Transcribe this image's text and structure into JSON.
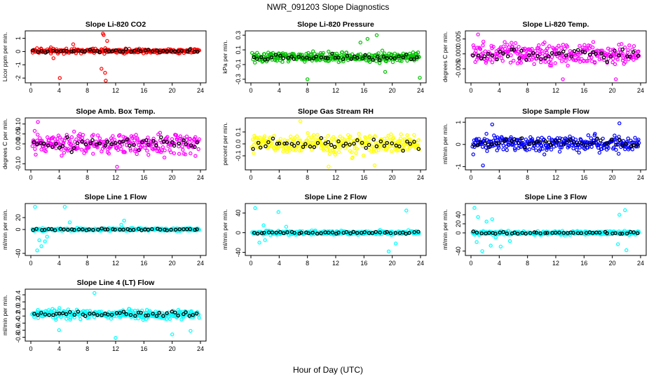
{
  "figure": {
    "title": "NWR_091203  Slope Diagnostics",
    "xlabel": "Hour of Day (UTC)"
  },
  "chart_data": [
    {
      "type": "scatter",
      "title": "Slope Li-820 CO2",
      "ylabel": "Licor ppm per min.",
      "color": "#ff0000",
      "xlim": [
        0,
        24
      ],
      "xticks": [
        0,
        4,
        8,
        12,
        16,
        20,
        24
      ],
      "ylim": [
        -2.2,
        1.4
      ],
      "yticks": [
        -2,
        -1,
        0,
        1
      ],
      "ytick_labels": [
        "-2",
        "-1",
        "0",
        "1"
      ],
      "spread": 0.18,
      "center": 0.05,
      "outliers": [
        [
          4.1,
          -2.0
        ],
        [
          10.3,
          1.25
        ],
        [
          10.5,
          -1.6
        ],
        [
          10.6,
          -2.2
        ],
        [
          10.2,
          1.35
        ],
        [
          6.0,
          0.55
        ],
        [
          3.2,
          -0.5
        ],
        [
          10.8,
          0.8
        ],
        [
          10.0,
          -1.3
        ]
      ]
    },
    {
      "type": "scatter",
      "title": "Slope Li-820 Pressure",
      "ylabel": "kPa per min.",
      "color": "#00c000",
      "xlim": [
        0,
        24
      ],
      "xticks": [
        0,
        4,
        8,
        12,
        16,
        20,
        24
      ],
      "ylim": [
        -0.32,
        0.33
      ],
      "yticks": [
        -0.3,
        -0.1,
        0.1,
        0.3
      ],
      "ytick_labels": [
        "-0.3",
        "-0.1",
        "0.1",
        "0.3"
      ],
      "spread": 0.07,
      "center": 0.0,
      "outliers": [
        [
          8.0,
          -0.3
        ],
        [
          17.8,
          0.3
        ],
        [
          23.9,
          -0.28
        ],
        [
          15.5,
          0.2
        ],
        [
          19.0,
          -0.2
        ],
        [
          16.5,
          0.25
        ]
      ]
    },
    {
      "type": "scatter",
      "title": "Slope Li-820 Temp.",
      "ylabel": "degrees C per min.",
      "color": "#ff00ff",
      "xlim": [
        0,
        24
      ],
      "xticks": [
        0,
        4,
        8,
        12,
        16,
        20,
        24
      ],
      "ylim": [
        -0.009,
        0.007
      ],
      "yticks": [
        -0.005,
        0,
        0.005
      ],
      "ytick_labels": [
        "-0.005",
        "0.000",
        "0.005"
      ],
      "spread": 0.0035,
      "center": 0.0,
      "outliers": [
        [
          20.5,
          -0.0085
        ],
        [
          1.0,
          0.0065
        ],
        [
          13.0,
          -0.0085
        ]
      ]
    },
    {
      "type": "scatter",
      "title": "Slope Amb. Box Temp.",
      "ylabel": "degrees C per min.",
      "color": "#ff00ff",
      "xlim": [
        0,
        24
      ],
      "xticks": [
        0,
        4,
        8,
        12,
        16,
        20,
        24
      ],
      "ylim": [
        -0.12,
        0.12
      ],
      "yticks": [
        -0.1,
        0,
        0.05,
        0.1
      ],
      "ytick_labels": [
        "-0.10",
        "0.00",
        "0.05",
        "0.10"
      ],
      "spread": 0.05,
      "center": 0.0,
      "outliers": [
        [
          12.2,
          -0.115
        ],
        [
          1.0,
          0.11
        ]
      ]
    },
    {
      "type": "scatter",
      "title": "Slope Gas Stream RH",
      "ylabel": "percent per min.",
      "color": "#ffff00",
      "xlim": [
        0,
        24
      ],
      "xticks": [
        0,
        4,
        8,
        12,
        16,
        20,
        24
      ],
      "ylim": [
        -0.2,
        0.2
      ],
      "yticks": [
        -0.1,
        0,
        0.1
      ],
      "ytick_labels": [
        "-0.1",
        "0.0",
        "0.1"
      ],
      "spread": 0.08,
      "center": 0.0,
      "outliers": [
        [
          7.0,
          0.19
        ],
        [
          11.0,
          -0.19
        ],
        [
          17.5,
          -0.18
        ]
      ]
    },
    {
      "type": "scatter",
      "title": "Slope Sample Flow",
      "ylabel": "ml/min per min.",
      "color": "#0000ff",
      "xlim": [
        0,
        24
      ],
      "xticks": [
        0,
        4,
        8,
        12,
        16,
        20,
        24
      ],
      "ylim": [
        -1.05,
        1.1
      ],
      "yticks": [
        -1,
        0,
        1
      ],
      "ytick_labels": [
        "-1",
        "0",
        "1"
      ],
      "spread": 0.35,
      "center": 0.05,
      "outliers": [
        [
          1.7,
          -0.95
        ],
        [
          21.0,
          0.95
        ],
        [
          3.0,
          0.9
        ]
      ]
    },
    {
      "type": "scatter",
      "title": "Slope Line 1 Flow",
      "ylabel": "ml/min per min.",
      "color": "#00ffff",
      "xlim": [
        0,
        24
      ],
      "xticks": [
        0,
        4,
        8,
        12,
        16,
        20,
        24
      ],
      "ylim": [
        -40,
        40
      ],
      "yticks": [
        -40,
        0,
        20
      ],
      "ytick_labels": [
        "-40",
        "0",
        "20"
      ],
      "spread": 2.5,
      "center": 0.0,
      "outliers": [
        [
          0.6,
          38
        ],
        [
          4.8,
          38
        ],
        [
          2.0,
          -20
        ],
        [
          1.5,
          -28
        ],
        [
          0.9,
          -35
        ],
        [
          2.3,
          -12
        ],
        [
          1.2,
          -18
        ],
        [
          5.5,
          12
        ],
        [
          13.2,
          15
        ],
        [
          12.8,
          8
        ]
      ]
    },
    {
      "type": "scatter",
      "title": "Slope Line 2 Flow",
      "ylabel": "ml/min per min.",
      "color": "#00ffff",
      "xlim": [
        0,
        24
      ],
      "xticks": [
        0,
        4,
        8,
        12,
        16,
        20,
        24
      ],
      "ylim": [
        -42,
        55
      ],
      "yticks": [
        -40,
        0,
        40
      ],
      "ytick_labels": [
        "-40",
        "0",
        "40"
      ],
      "spread": 4,
      "center": 0.0,
      "outliers": [
        [
          0.6,
          50
        ],
        [
          3.9,
          42
        ],
        [
          1.2,
          -20
        ],
        [
          2.0,
          -15
        ],
        [
          19.5,
          -38
        ],
        [
          22.0,
          45
        ],
        [
          20.5,
          -22
        ],
        [
          1.8,
          15
        ],
        [
          5.0,
          12
        ]
      ]
    },
    {
      "type": "scatter",
      "title": "Slope Line 3 Flow",
      "ylabel": "ml/min per min.",
      "color": "#00ffff",
      "xlim": [
        0,
        24
      ],
      "xticks": [
        0,
        4,
        8,
        12,
        16,
        20,
        24
      ],
      "ylim": [
        -45,
        60
      ],
      "yticks": [
        -40,
        0,
        20,
        40
      ],
      "ytick_labels": [
        "-40",
        "0",
        "20",
        "40"
      ],
      "spread": 4,
      "center": 0.0,
      "outliers": [
        [
          0.5,
          55
        ],
        [
          1.0,
          35
        ],
        [
          0.8,
          -20
        ],
        [
          1.6,
          -40
        ],
        [
          2.2,
          25
        ],
        [
          2.8,
          -28
        ],
        [
          3.0,
          30
        ],
        [
          3.5,
          -10
        ],
        [
          4.2,
          -30
        ],
        [
          21.0,
          40
        ],
        [
          21.8,
          50
        ],
        [
          20.8,
          -25
        ],
        [
          22.0,
          -38
        ],
        [
          5.5,
          -18
        ]
      ]
    },
    {
      "type": "scatter",
      "title": "Slope Line 4 (LT) Flow",
      "ylabel": "ml/min per min.",
      "color": "#00ffff",
      "xlim": [
        0,
        24
      ],
      "xticks": [
        0,
        4,
        8,
        12,
        16,
        20,
        24
      ],
      "ylim": [
        -0.85,
        0.5
      ],
      "yticks": [
        -0.8,
        -0.6,
        -0.4,
        -0.2,
        0,
        0.2,
        0.4
      ],
      "ytick_labels": [
        "-0.8",
        "-0.6",
        "-0.4",
        "-0.2",
        "0.0",
        "0.2",
        "0.4"
      ],
      "spread": 0.13,
      "center": -0.15,
      "outliers": [
        [
          12.0,
          -0.82
        ],
        [
          4.0,
          -0.6
        ],
        [
          22.6,
          -0.62
        ],
        [
          9.0,
          0.45
        ],
        [
          20.0,
          -0.72
        ]
      ]
    }
  ]
}
